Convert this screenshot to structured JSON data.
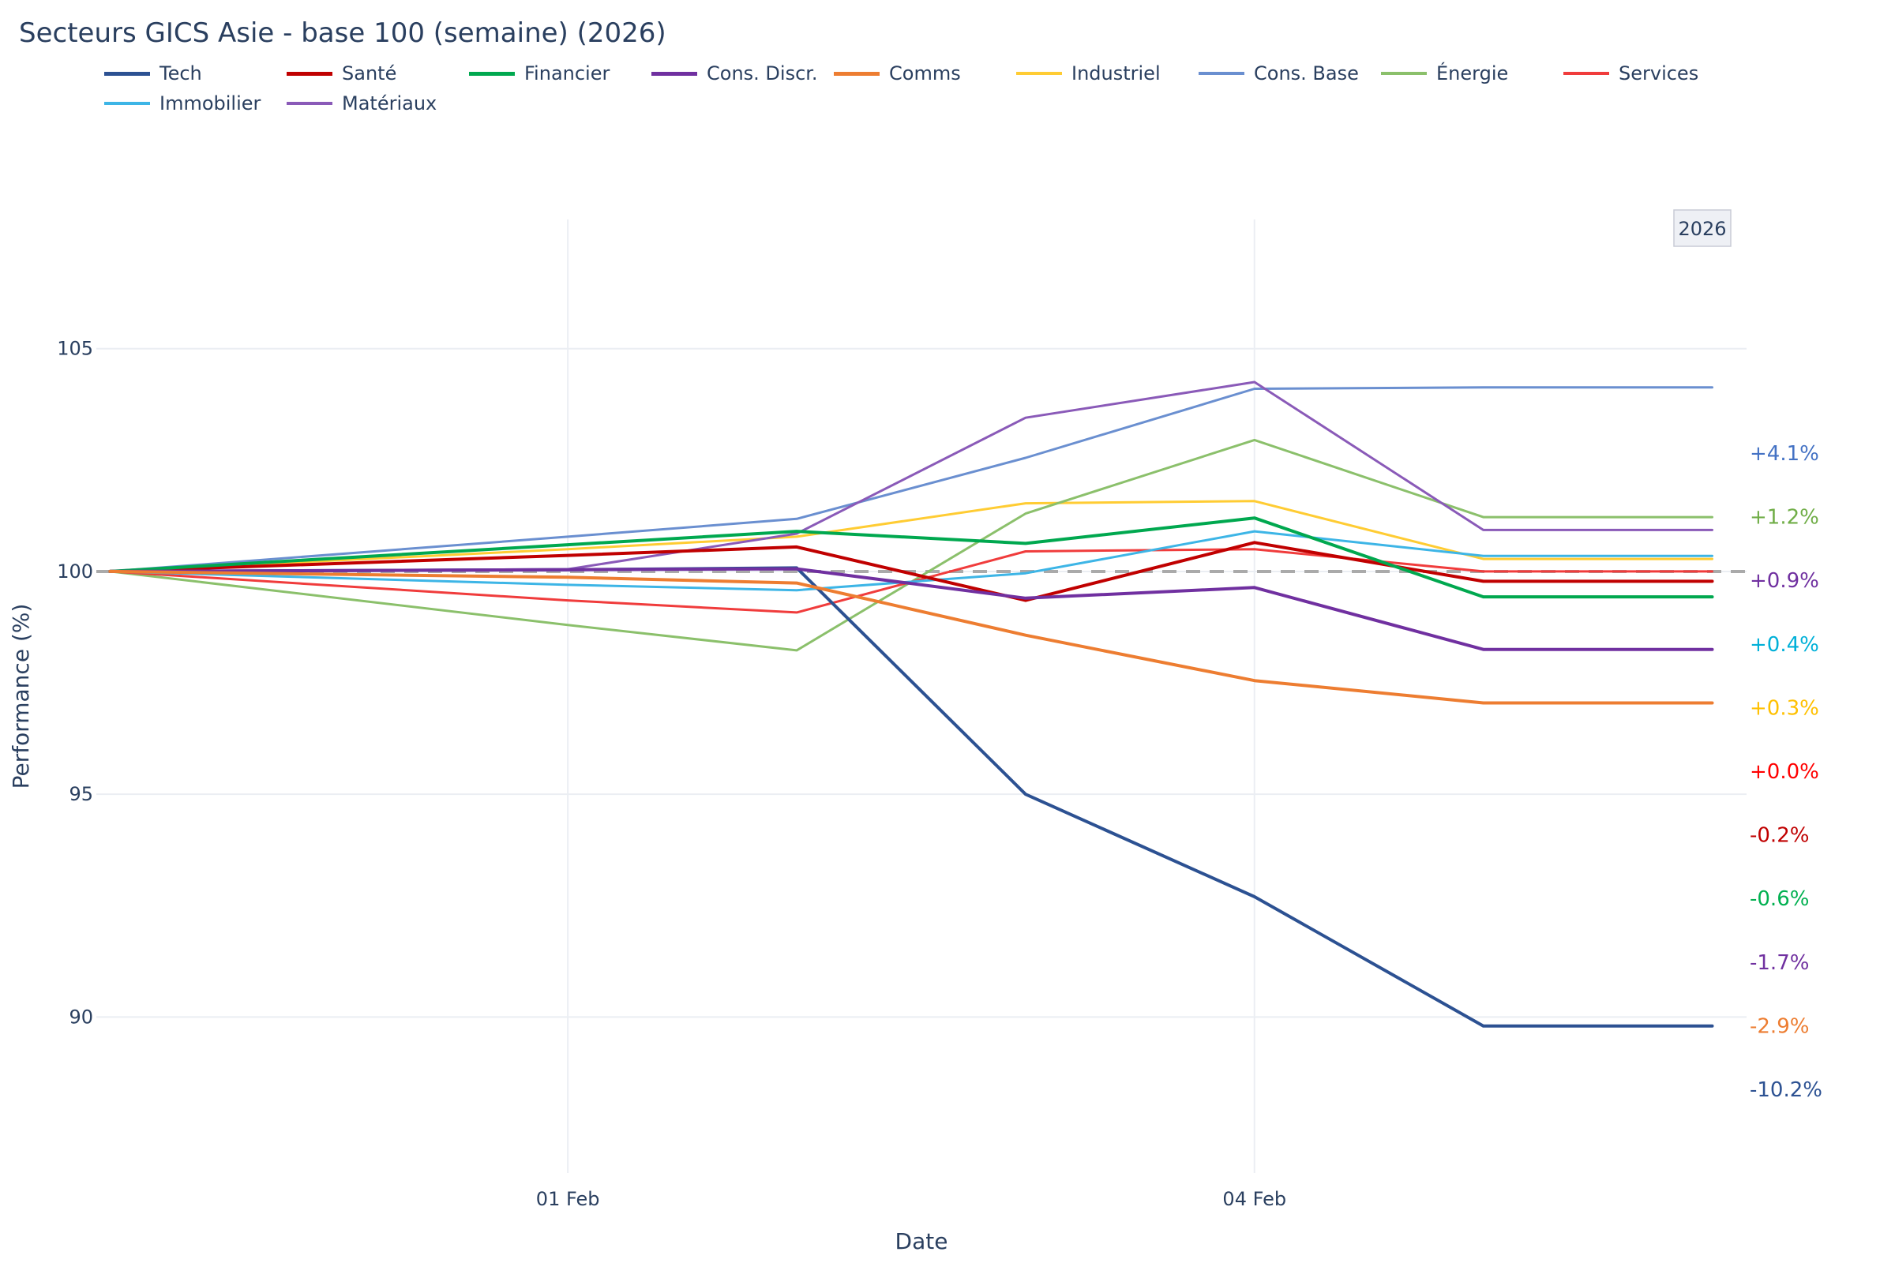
{
  "chart_data": {
    "type": "line",
    "title": "Secteurs GICS Asie - base 100 (semaine) (2026)",
    "xlabel": "Date",
    "ylabel": "Performance (%)",
    "x_points": [
      0,
      2,
      3,
      4,
      5,
      6,
      7
    ],
    "x_ticks": [
      {
        "x": 2,
        "label": "01 Feb"
      },
      {
        "x": 5,
        "label": "04 Feb"
      }
    ],
    "xlim": [
      -0.06,
      7.15
    ],
    "y_ticks": [
      90,
      95,
      100,
      105
    ],
    "ylim": [
      86.5,
      107.9
    ],
    "reference_line": 100,
    "year_badge": "2026",
    "series": [
      {
        "name": "Tech",
        "color": "#2c5192",
        "width": 4,
        "values": [
          100,
          100.04,
          100.08,
          95.0,
          92.7,
          89.8,
          89.8
        ]
      },
      {
        "name": "Santé",
        "color": "#c00000",
        "width": 4,
        "values": [
          100,
          100.36,
          100.55,
          99.35,
          100.65,
          99.78,
          99.78
        ]
      },
      {
        "name": "Financier",
        "color": "#00a84f",
        "width": 4,
        "values": [
          100,
          100.6,
          100.9,
          100.63,
          101.2,
          99.43,
          99.43
        ]
      },
      {
        "name": "Cons. Discr.",
        "color": "#7030a0",
        "width": 4,
        "values": [
          100,
          100.04,
          100.06,
          99.4,
          99.64,
          98.25,
          98.25
        ]
      },
      {
        "name": "Comms",
        "color": "#ed7d31",
        "width": 4,
        "values": [
          100,
          99.87,
          99.74,
          98.57,
          97.55,
          97.05,
          97.05
        ]
      },
      {
        "name": "Industriel",
        "color": "#ffcc33",
        "width": 3,
        "values": [
          100,
          100.5,
          100.78,
          101.53,
          101.58,
          100.28,
          100.28
        ]
      },
      {
        "name": "Cons. Base",
        "color": "#6a8fd0",
        "width": 3,
        "values": [
          100,
          100.78,
          101.18,
          102.55,
          104.1,
          104.13,
          104.13
        ]
      },
      {
        "name": "Énergie",
        "color": "#8bc06b",
        "width": 3,
        "values": [
          100,
          98.8,
          98.23,
          101.3,
          102.95,
          101.22,
          101.22
        ]
      },
      {
        "name": "Services",
        "color": "#f03c3c",
        "width": 3,
        "values": [
          100,
          99.35,
          99.08,
          100.45,
          100.5,
          100.0,
          100.0
        ]
      },
      {
        "name": "Immobilier",
        "color": "#3db5e6",
        "width": 3,
        "values": [
          100,
          99.7,
          99.58,
          99.96,
          100.9,
          100.35,
          100.35
        ]
      },
      {
        "name": "Matériaux",
        "color": "#8a5ab8",
        "width": 3,
        "values": [
          100,
          100.05,
          100.85,
          103.45,
          104.25,
          100.93,
          100.93
        ]
      }
    ],
    "end_labels": [
      {
        "text": "+4.1%",
        "color": "#4472c4"
      },
      {
        "text": "+1.2%",
        "color": "#70ad47"
      },
      {
        "text": "+0.9%",
        "color": "#7030a0"
      },
      {
        "text": "+0.4%",
        "color": "#00b0d8"
      },
      {
        "text": "+0.3%",
        "color": "#ffc000"
      },
      {
        "text": "+0.0%",
        "color": "#ff0000"
      },
      {
        "text": "-0.2%",
        "color": "#c00000"
      },
      {
        "text": "-0.6%",
        "color": "#00b050"
      },
      {
        "text": "-1.7%",
        "color": "#7030a0"
      },
      {
        "text": "-2.9%",
        "color": "#ed7d31"
      },
      {
        "text": "-10.2%",
        "color": "#2c5192"
      }
    ]
  }
}
